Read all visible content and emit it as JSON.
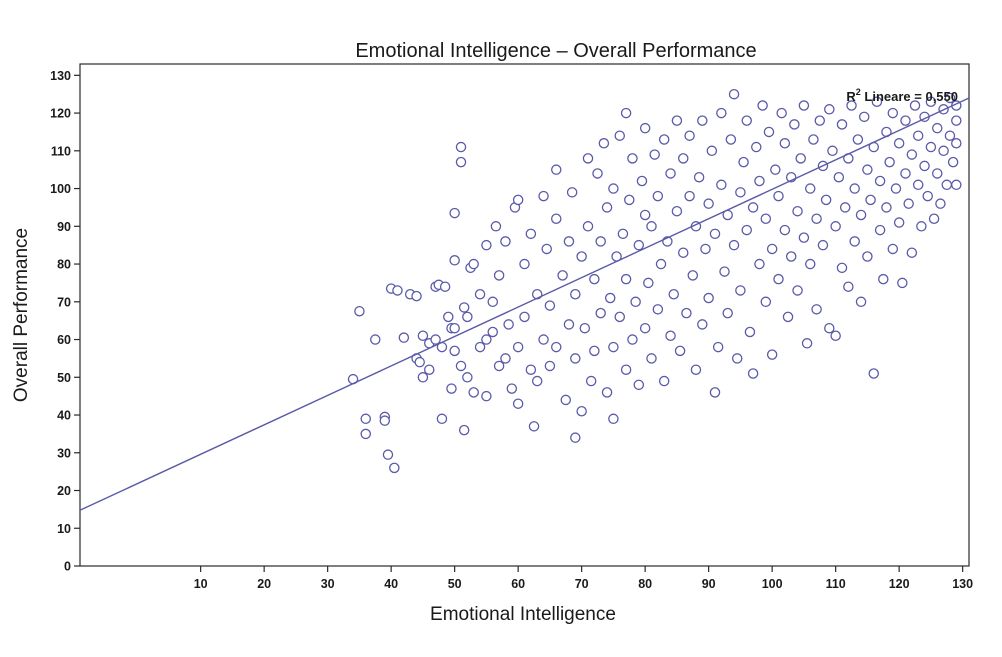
{
  "chart_data": {
    "type": "scatter",
    "title": "Emotional Intelligence – Overall Performance",
    "xlabel": "Emotional Intelligence",
    "ylabel": "Overall Performance",
    "xlim": [
      -9,
      131
    ],
    "ylim": [
      0,
      133
    ],
    "x_ticks": [
      10,
      20,
      30,
      40,
      50,
      60,
      70,
      80,
      90,
      100,
      110,
      120,
      130
    ],
    "y_ticks": [
      0,
      10,
      20,
      30,
      40,
      50,
      60,
      70,
      80,
      90,
      100,
      110,
      120,
      130
    ],
    "grid": false,
    "marker_color": "#5a5aa8",
    "fit_line_color": "#5a5aa8",
    "fit_line": {
      "label_prefix": "R",
      "label_sup": "2",
      "label_text": " Lineare = 0,550",
      "intercept": 21.8,
      "slope": 0.78,
      "x_start": -9,
      "x_end": 131
    },
    "series": [
      {
        "points": [
          [
            34,
            49.5
          ],
          [
            35,
            67.5
          ],
          [
            36,
            35
          ],
          [
            36,
            39
          ],
          [
            37.5,
            60
          ],
          [
            39,
            39.5
          ],
          [
            39,
            38.5
          ],
          [
            39.5,
            29.5
          ],
          [
            40,
            73.5
          ],
          [
            40.5,
            26
          ],
          [
            41,
            73
          ],
          [
            42,
            60.5
          ],
          [
            43,
            72
          ],
          [
            44,
            71.5
          ],
          [
            44,
            55
          ],
          [
            44.5,
            54
          ],
          [
            45,
            61
          ],
          [
            45,
            50
          ],
          [
            46,
            59
          ],
          [
            46,
            52
          ],
          [
            47,
            74
          ],
          [
            47,
            60
          ],
          [
            47.5,
            74.5
          ],
          [
            48,
            58
          ],
          [
            48,
            39
          ],
          [
            48.5,
            74
          ],
          [
            49,
            66
          ],
          [
            49.5,
            63
          ],
          [
            49.5,
            47
          ],
          [
            50,
            93.5
          ],
          [
            50,
            81
          ],
          [
            50,
            63
          ],
          [
            50,
            57
          ],
          [
            51,
            107
          ],
          [
            51,
            111
          ],
          [
            51,
            53
          ],
          [
            51.5,
            36
          ],
          [
            51.5,
            68.5
          ],
          [
            52,
            66
          ],
          [
            52,
            50
          ],
          [
            52.5,
            79
          ],
          [
            53,
            80
          ],
          [
            53,
            46
          ],
          [
            54,
            58
          ],
          [
            54,
            72
          ],
          [
            55,
            60
          ],
          [
            55,
            85
          ],
          [
            55,
            45
          ],
          [
            56,
            62
          ],
          [
            56,
            70
          ],
          [
            56.5,
            90
          ],
          [
            57,
            53
          ],
          [
            57,
            77
          ],
          [
            58,
            86
          ],
          [
            58,
            55
          ],
          [
            58.5,
            64
          ],
          [
            59,
            47
          ],
          [
            59.5,
            95
          ],
          [
            60,
            97
          ],
          [
            60,
            58
          ],
          [
            60,
            43
          ],
          [
            61,
            80
          ],
          [
            61,
            66
          ],
          [
            62,
            52
          ],
          [
            62,
            88
          ],
          [
            62.5,
            37
          ],
          [
            63,
            49
          ],
          [
            63,
            72
          ],
          [
            64,
            60
          ],
          [
            64,
            98
          ],
          [
            64.5,
            84
          ],
          [
            65,
            53
          ],
          [
            65,
            69
          ],
          [
            66,
            105
          ],
          [
            66,
            92
          ],
          [
            66,
            58
          ],
          [
            67,
            77
          ],
          [
            67.5,
            44
          ],
          [
            68,
            86
          ],
          [
            68,
            64
          ],
          [
            68.5,
            99
          ],
          [
            69,
            34
          ],
          [
            69,
            55
          ],
          [
            69,
            72
          ],
          [
            70,
            41
          ],
          [
            70,
            82
          ],
          [
            70.5,
            63
          ],
          [
            71,
            108
          ],
          [
            71,
            90
          ],
          [
            71.5,
            49
          ],
          [
            72,
            76
          ],
          [
            72,
            57
          ],
          [
            72.5,
            104
          ],
          [
            73,
            67
          ],
          [
            73,
            86
          ],
          [
            73.5,
            112
          ],
          [
            74,
            46
          ],
          [
            74,
            95
          ],
          [
            74.5,
            71
          ],
          [
            75,
            39
          ],
          [
            75,
            58
          ],
          [
            75,
            100
          ],
          [
            75.5,
            82
          ],
          [
            76,
            114
          ],
          [
            76,
            66
          ],
          [
            76.5,
            88
          ],
          [
            77,
            52
          ],
          [
            77,
            120
          ],
          [
            77,
            76
          ],
          [
            77.5,
            97
          ],
          [
            78,
            60
          ],
          [
            78,
            108
          ],
          [
            78.5,
            70
          ],
          [
            79,
            48
          ],
          [
            79,
            85
          ],
          [
            79.5,
            102
          ],
          [
            80,
            93
          ],
          [
            80,
            63
          ],
          [
            80,
            116
          ],
          [
            80.5,
            75
          ],
          [
            81,
            55
          ],
          [
            81,
            90
          ],
          [
            81.5,
            109
          ],
          [
            82,
            68
          ],
          [
            82,
            98
          ],
          [
            82.5,
            80
          ],
          [
            83,
            49
          ],
          [
            83,
            113
          ],
          [
            83.5,
            86
          ],
          [
            84,
            61
          ],
          [
            84,
            104
          ],
          [
            84.5,
            72
          ],
          [
            85,
            94
          ],
          [
            85,
            118
          ],
          [
            85.5,
            57
          ],
          [
            86,
            83
          ],
          [
            86,
            108
          ],
          [
            86.5,
            67
          ],
          [
            87,
            98
          ],
          [
            87,
            114
          ],
          [
            87.5,
            77
          ],
          [
            88,
            52
          ],
          [
            88,
            90
          ],
          [
            88.5,
            103
          ],
          [
            89,
            64
          ],
          [
            89,
            118
          ],
          [
            89.5,
            84
          ],
          [
            90,
            96
          ],
          [
            90,
            71
          ],
          [
            90.5,
            110
          ],
          [
            91,
            46
          ],
          [
            91,
            88
          ],
          [
            91.5,
            58
          ],
          [
            92,
            101
          ],
          [
            92,
            120
          ],
          [
            92.5,
            78
          ],
          [
            93,
            93
          ],
          [
            93,
            67
          ],
          [
            93.5,
            113
          ],
          [
            94,
            85
          ],
          [
            94,
            125
          ],
          [
            94.5,
            55
          ],
          [
            95,
            99
          ],
          [
            95,
            73
          ],
          [
            95.5,
            107
          ],
          [
            96,
            89
          ],
          [
            96,
            118
          ],
          [
            96.5,
            62
          ],
          [
            97,
            95
          ],
          [
            97,
            51
          ],
          [
            97.5,
            111
          ],
          [
            98,
            80
          ],
          [
            98,
            102
          ],
          [
            98.5,
            122
          ],
          [
            99,
            70
          ],
          [
            99,
            92
          ],
          [
            99.5,
            115
          ],
          [
            100,
            84
          ],
          [
            100,
            56
          ],
          [
            100.5,
            105
          ],
          [
            101,
            98
          ],
          [
            101,
            76
          ],
          [
            101.5,
            120
          ],
          [
            102,
            89
          ],
          [
            102,
            112
          ],
          [
            102.5,
            66
          ],
          [
            103,
            103
          ],
          [
            103,
            82
          ],
          [
            103.5,
            117
          ],
          [
            104,
            94
          ],
          [
            104,
            73
          ],
          [
            104.5,
            108
          ],
          [
            105,
            87
          ],
          [
            105,
            122
          ],
          [
            105.5,
            59
          ],
          [
            106,
            100
          ],
          [
            106,
            80
          ],
          [
            106.5,
            113
          ],
          [
            107,
            92
          ],
          [
            107,
            68
          ],
          [
            107.5,
            118
          ],
          [
            108,
            106
          ],
          [
            108,
            85
          ],
          [
            108.5,
            97
          ],
          [
            109,
            121
          ],
          [
            109,
            63
          ],
          [
            109.5,
            110
          ],
          [
            110,
            90
          ],
          [
            110,
            61
          ],
          [
            110.5,
            103
          ],
          [
            111,
            79
          ],
          [
            111,
            117
          ],
          [
            111.5,
            95
          ],
          [
            112,
            108
          ],
          [
            112,
            74
          ],
          [
            112.5,
            122
          ],
          [
            113,
            100
          ],
          [
            113,
            86
          ],
          [
            113.5,
            113
          ],
          [
            114,
            93
          ],
          [
            114,
            70
          ],
          [
            114.5,
            119
          ],
          [
            115,
            105
          ],
          [
            115,
            82
          ],
          [
            115.5,
            97
          ],
          [
            116,
            51
          ],
          [
            116,
            111
          ],
          [
            116.5,
            123
          ],
          [
            117,
            89
          ],
          [
            117,
            102
          ],
          [
            117.5,
            76
          ],
          [
            118,
            115
          ],
          [
            118,
            95
          ],
          [
            118.5,
            107
          ],
          [
            119,
            84
          ],
          [
            119,
            120
          ],
          [
            119.5,
            100
          ],
          [
            120,
            91
          ],
          [
            120,
            112
          ],
          [
            120.5,
            75
          ],
          [
            121,
            104
          ],
          [
            121,
            118
          ],
          [
            121.5,
            96
          ],
          [
            122,
            83
          ],
          [
            122,
            109
          ],
          [
            122.5,
            122
          ],
          [
            123,
            101
          ],
          [
            123,
            114
          ],
          [
            123.5,
            90
          ],
          [
            124,
            106
          ],
          [
            124,
            119
          ],
          [
            124.5,
            98
          ],
          [
            125,
            111
          ],
          [
            125,
            123
          ],
          [
            125.5,
            92
          ],
          [
            126,
            104
          ],
          [
            126,
            116
          ],
          [
            126.5,
            96
          ],
          [
            127,
            110
          ],
          [
            127,
            121
          ],
          [
            127.5,
            101
          ],
          [
            128,
            114
          ],
          [
            128,
            124
          ],
          [
            128.5,
            107
          ],
          [
            129,
            118
          ],
          [
            129,
            112
          ],
          [
            129,
            122
          ],
          [
            129,
            101
          ]
        ]
      }
    ]
  }
}
